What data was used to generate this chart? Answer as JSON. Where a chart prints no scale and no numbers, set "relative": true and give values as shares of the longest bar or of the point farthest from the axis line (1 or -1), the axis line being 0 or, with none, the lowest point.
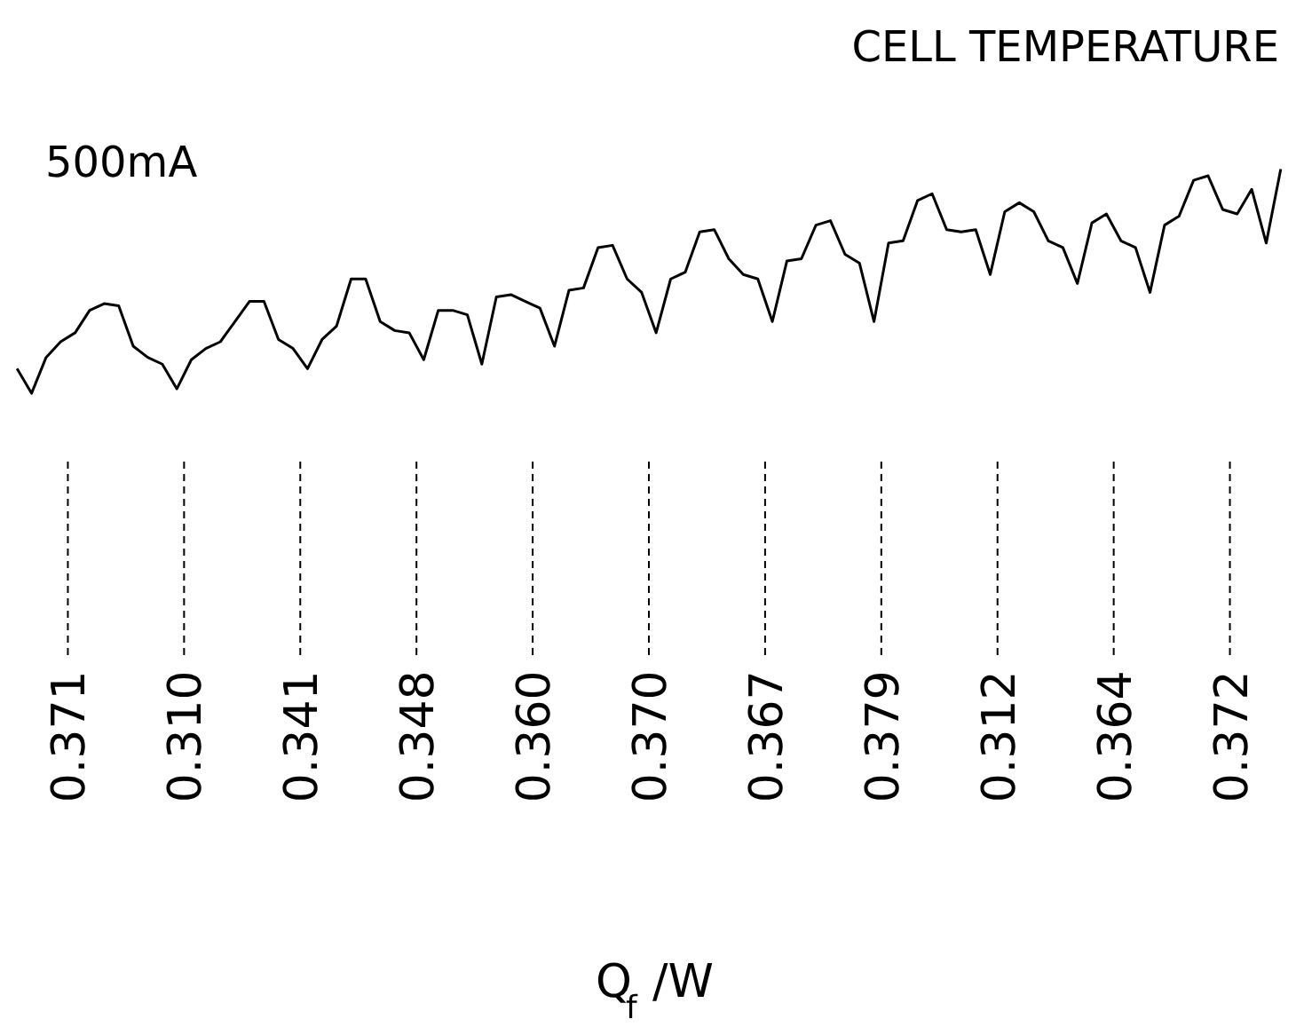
{
  "chart_data": [
    {
      "type": "line",
      "title": "CELL TEMPERATURE",
      "annotations": [
        "500mA"
      ],
      "relative": true,
      "color": "#000000",
      "line_style": "solid",
      "grid": false,
      "categories": [
        null,
        null,
        null,
        null,
        null,
        null,
        null,
        null,
        null,
        null,
        null,
        null,
        null,
        null,
        null,
        null,
        null,
        null,
        null,
        null,
        null,
        null,
        null,
        null,
        null,
        null,
        null,
        null,
        null,
        null,
        null,
        null,
        null,
        null,
        null,
        null,
        null,
        null,
        null,
        null,
        null,
        null,
        null,
        null,
        null,
        null,
        null,
        null,
        null,
        null,
        null,
        null,
        null,
        null,
        null,
        null,
        null,
        null,
        null,
        null,
        null,
        null,
        null,
        null,
        null,
        null,
        null,
        null,
        null,
        null,
        null,
        null,
        null,
        null,
        null,
        null,
        null,
        null,
        null,
        null,
        null,
        null,
        null,
        null,
        null,
        null,
        null,
        null
      ],
      "values": [
        0.11,
        0,
        0.16,
        0.23,
        0.27,
        0.37,
        0.4,
        0.39,
        0.21,
        0.16,
        0.13,
        0.02,
        0.15,
        0.2,
        0.23,
        0.32,
        0.41,
        0.41,
        0.24,
        0.2,
        0.11,
        0.24,
        0.3,
        0.51,
        0.51,
        0.32,
        0.28,
        0.27,
        0.15,
        0.37,
        0.37,
        0.35,
        0.13,
        0.43,
        0.44,
        0.41,
        0.38,
        0.21,
        0.46,
        0.47,
        0.65,
        0.66,
        0.51,
        0.45,
        0.27,
        0.51,
        0.54,
        0.72,
        0.73,
        0.6,
        0.53,
        0.51,
        0.32,
        0.59,
        0.6,
        0.75,
        0.77,
        0.62,
        0.58,
        0.32,
        0.67,
        0.68,
        0.86,
        0.89,
        0.73,
        0.72,
        0.73,
        0.53,
        0.81,
        0.85,
        0.81,
        0.68,
        0.65,
        0.49,
        0.76,
        0.8,
        0.68,
        0.65,
        0.45,
        0.75,
        0.79,
        0.95,
        0.97,
        0.82,
        0.8,
        0.91,
        0.67,
        1.0
      ]
    },
    {
      "type": "other",
      "xlabel": "Q$_{f}$ /W",
      "color": "#000000",
      "categories": [
        null,
        null,
        null,
        null,
        null,
        null,
        null,
        null,
        null,
        null,
        null
      ],
      "values": [
        0.371,
        0.31,
        0.341,
        0.348,
        0.36,
        0.37,
        0.367,
        0.379,
        0.312,
        0.364,
        0.372
      ],
      "value_labels": [
        "0.371",
        "0.310",
        "0.341",
        "0.348",
        "0.360",
        "0.370",
        "0.367",
        "0.379",
        "0.312",
        "0.364",
        "0.372"
      ]
    }
  ]
}
